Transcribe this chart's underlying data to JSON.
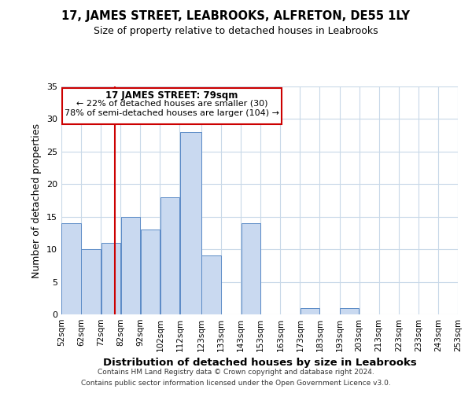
{
  "title": "17, JAMES STREET, LEABROOKS, ALFRETON, DE55 1LY",
  "subtitle": "Size of property relative to detached houses in Leabrooks",
  "xlabel": "Distribution of detached houses by size in Leabrooks",
  "ylabel": "Number of detached properties",
  "bin_edges": [
    52,
    62,
    72,
    82,
    92,
    102,
    112,
    123,
    133,
    143,
    153,
    163,
    173,
    183,
    193,
    203,
    213,
    223,
    233,
    243,
    253
  ],
  "bin_labels": [
    "52sqm",
    "62sqm",
    "72sqm",
    "82sqm",
    "92sqm",
    "102sqm",
    "112sqm",
    "123sqm",
    "133sqm",
    "143sqm",
    "153sqm",
    "163sqm",
    "173sqm",
    "183sqm",
    "193sqm",
    "203sqm",
    "213sqm",
    "223sqm",
    "233sqm",
    "243sqm",
    "253sqm"
  ],
  "bar_heights": [
    14,
    10,
    11,
    15,
    13,
    18,
    28,
    9,
    0,
    14,
    0,
    0,
    1,
    0,
    1,
    0,
    0,
    0,
    0,
    0
  ],
  "bar_color": "#c9d9f0",
  "bar_edge_color": "#5a8ac6",
  "vline_x": 79,
  "vline_color": "#cc0000",
  "ylim": [
    0,
    35
  ],
  "yticks": [
    0,
    5,
    10,
    15,
    20,
    25,
    30,
    35
  ],
  "annotation_title": "17 JAMES STREET: 79sqm",
  "annotation_line1": "← 22% of detached houses are smaller (30)",
  "annotation_line2": "78% of semi-detached houses are larger (104) →",
  "annotation_box_edge": "#cc0000",
  "footer1": "Contains HM Land Registry data © Crown copyright and database right 2024.",
  "footer2": "Contains public sector information licensed under the Open Government Licence v3.0.",
  "background_color": "#ffffff",
  "grid_color": "#c8d8e8"
}
